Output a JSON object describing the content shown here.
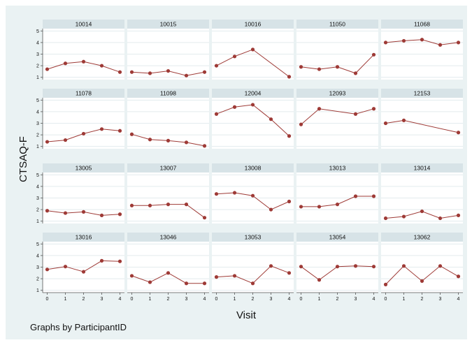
{
  "chart_data": {
    "type": "line",
    "ylabel": "CTSAQ-F",
    "xlabel": "Visit",
    "footnote": "Graphs by ParticipantID",
    "x_ticks": [
      0,
      1,
      2,
      3,
      4
    ],
    "y_ticks": [
      1,
      2,
      3,
      4,
      5
    ],
    "ylim": [
      0.8,
      5.2
    ],
    "xlim": [
      -0.25,
      4.25
    ],
    "grid": true,
    "colors": {
      "line": "#9e3a36",
      "marker": "#9e3a36",
      "panel_header": "#d7e3e7",
      "grid": "#e3ebee",
      "background": "#eaf2f3"
    },
    "panels": [
      {
        "id": "10014",
        "x": [
          0,
          1,
          2,
          3,
          4
        ],
        "y": [
          1.7,
          2.2,
          2.35,
          2.0,
          1.45
        ]
      },
      {
        "id": "10015",
        "x": [
          0,
          1,
          2,
          3,
          4
        ],
        "y": [
          1.45,
          1.35,
          1.55,
          1.15,
          1.45
        ]
      },
      {
        "id": "10016",
        "x": [
          0,
          1,
          2,
          4
        ],
        "y": [
          2.0,
          2.8,
          3.4,
          1.05
        ]
      },
      {
        "id": "11050",
        "x": [
          0,
          1,
          2,
          3,
          4
        ],
        "y": [
          1.9,
          1.7,
          1.9,
          1.35,
          2.95
        ]
      },
      {
        "id": "11068",
        "x": [
          0,
          1,
          2,
          3,
          4
        ],
        "y": [
          4.0,
          4.15,
          4.25,
          3.8,
          4.0
        ]
      },
      {
        "id": "11078",
        "x": [
          0,
          1,
          2,
          3,
          4
        ],
        "y": [
          1.4,
          1.55,
          2.1,
          2.5,
          2.35
        ]
      },
      {
        "id": "11098",
        "x": [
          0,
          1,
          2,
          3,
          4
        ],
        "y": [
          2.05,
          1.6,
          1.5,
          1.35,
          1.05
        ]
      },
      {
        "id": "12004",
        "x": [
          0,
          1,
          2,
          3,
          4
        ],
        "y": [
          3.8,
          4.4,
          4.6,
          3.35,
          1.9
        ]
      },
      {
        "id": "12093",
        "x": [
          0,
          1,
          3,
          4
        ],
        "y": [
          2.9,
          4.25,
          3.8,
          4.25
        ]
      },
      {
        "id": "12153",
        "x": [
          0,
          1,
          4
        ],
        "y": [
          3.0,
          3.25,
          2.2
        ]
      },
      {
        "id": "13005",
        "x": [
          0,
          1,
          2,
          3,
          4
        ],
        "y": [
          1.9,
          1.7,
          1.8,
          1.5,
          1.6
        ]
      },
      {
        "id": "13007",
        "x": [
          0,
          1,
          2,
          3,
          4
        ],
        "y": [
          2.35,
          2.35,
          2.45,
          2.45,
          1.3
        ]
      },
      {
        "id": "13008",
        "x": [
          0,
          1,
          2,
          3,
          4
        ],
        "y": [
          3.35,
          3.45,
          3.2,
          2.0,
          2.7
        ]
      },
      {
        "id": "13013",
        "x": [
          0,
          1,
          2,
          3,
          4
        ],
        "y": [
          2.25,
          2.25,
          2.45,
          3.15,
          3.15
        ]
      },
      {
        "id": "13014",
        "x": [
          0,
          1,
          2,
          3,
          4
        ],
        "y": [
          1.25,
          1.4,
          1.85,
          1.25,
          1.5
        ]
      },
      {
        "id": "13016",
        "x": [
          0,
          1,
          2,
          3,
          4
        ],
        "y": [
          2.8,
          3.05,
          2.6,
          3.55,
          3.5
        ]
      },
      {
        "id": "13046",
        "x": [
          0,
          1,
          2,
          3,
          4
        ],
        "y": [
          2.25,
          1.7,
          2.5,
          1.6,
          1.6
        ]
      },
      {
        "id": "13053",
        "x": [
          0,
          1,
          2,
          3,
          4
        ],
        "y": [
          2.15,
          2.25,
          1.6,
          3.1,
          2.5
        ]
      },
      {
        "id": "13054",
        "x": [
          0,
          1,
          2,
          3,
          4
        ],
        "y": [
          3.05,
          1.9,
          3.05,
          3.1,
          3.05
        ]
      },
      {
        "id": "13062",
        "x": [
          0,
          1,
          2,
          3,
          4
        ],
        "y": [
          1.5,
          3.1,
          1.8,
          3.1,
          2.2
        ]
      }
    ]
  }
}
